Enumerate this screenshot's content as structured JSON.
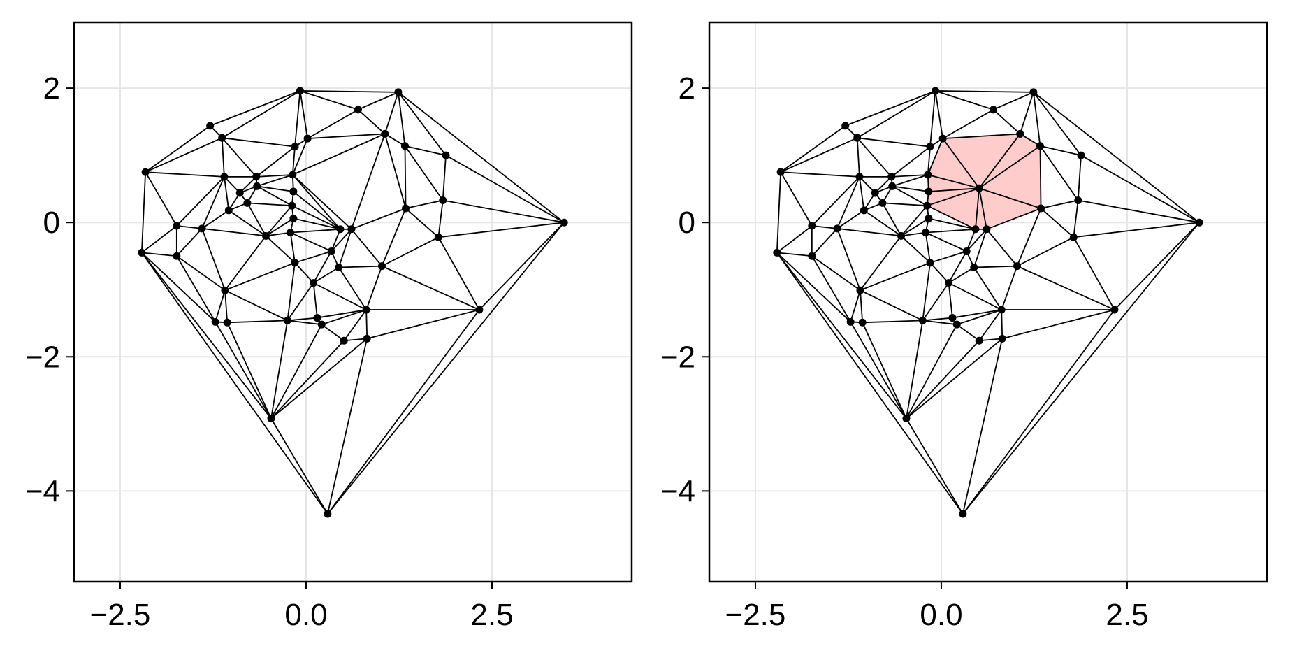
{
  "chart_data": [
    {
      "type": "scatter",
      "subtype": "delaunay-triangulation",
      "title": "",
      "xlabel": "",
      "ylabel": "",
      "xlim": [
        -3.12,
        4.38
      ],
      "ylim": [
        -5.35,
        2.98
      ],
      "xticks": [
        -2.5,
        0.0,
        2.5
      ],
      "xtick_labels": [
        "−2.5",
        "0.0",
        "2.5"
      ],
      "yticks": [
        2,
        0,
        -2,
        -4
      ],
      "ytick_labels": [
        "2",
        "0",
        "−2",
        "−4"
      ],
      "grid": true,
      "points": [
        [
          -0.08,
          1.96
        ],
        [
          1.24,
          1.94
        ],
        [
          0.7,
          1.68
        ],
        [
          -1.29,
          1.44
        ],
        [
          -1.13,
          1.26
        ],
        [
          0.02,
          1.25
        ],
        [
          1.06,
          1.32
        ],
        [
          -0.15,
          1.13
        ],
        [
          1.33,
          1.14
        ],
        [
          1.88,
          1.0
        ],
        [
          -2.16,
          0.75
        ],
        [
          -1.1,
          0.68
        ],
        [
          -0.67,
          0.68
        ],
        [
          -0.18,
          0.71
        ],
        [
          -0.66,
          0.54
        ],
        [
          -0.89,
          0.44
        ],
        [
          -0.17,
          0.46
        ],
        [
          -0.79,
          0.29
        ],
        [
          -1.04,
          0.18
        ],
        [
          -0.19,
          0.25
        ],
        [
          1.84,
          0.33
        ],
        [
          1.34,
          0.21
        ],
        [
          -0.17,
          0.06
        ],
        [
          3.47,
          0.0
        ],
        [
          -1.74,
          -0.05
        ],
        [
          -1.4,
          -0.09
        ],
        [
          0.61,
          -0.1
        ],
        [
          0.46,
          -0.1
        ],
        [
          -0.21,
          -0.15
        ],
        [
          -0.54,
          -0.2
        ],
        [
          1.78,
          -0.22
        ],
        [
          -2.21,
          -0.45
        ],
        [
          -1.74,
          -0.5
        ],
        [
          0.34,
          -0.43
        ],
        [
          -0.15,
          -0.6
        ],
        [
          0.44,
          -0.67
        ],
        [
          1.02,
          -0.65
        ],
        [
          0.1,
          -0.9
        ],
        [
          -1.09,
          -1.01
        ],
        [
          0.81,
          -1.3
        ],
        [
          2.33,
          -1.3
        ],
        [
          -0.25,
          -1.46
        ],
        [
          0.15,
          -1.42
        ],
        [
          -1.22,
          -1.48
        ],
        [
          -1.06,
          -1.49
        ],
        [
          0.21,
          -1.52
        ],
        [
          0.51,
          -1.76
        ],
        [
          0.82,
          -1.73
        ],
        [
          -0.47,
          -2.92
        ],
        [
          0.29,
          -4.34
        ]
      ],
      "highlight": null
    },
    {
      "type": "scatter",
      "subtype": "delaunay-triangulation",
      "title": "",
      "xlabel": "",
      "ylabel": "",
      "xlim": [
        -3.12,
        4.38
      ],
      "ylim": [
        -5.35,
        2.98
      ],
      "xticks": [
        -2.5,
        0.0,
        2.5
      ],
      "xtick_labels": [
        "−2.5",
        "0.0",
        "2.5"
      ],
      "yticks": [
        2,
        0,
        -2,
        -4
      ],
      "ytick_labels": [
        "2",
        "0",
        "−2",
        "−4"
      ],
      "grid": true,
      "added_point": [
        0.51,
        0.51
      ],
      "highlight": {
        "description": "star polygon of inserted point",
        "fill": "#ffcccc",
        "polygon": [
          [
            0.02,
            1.26
          ],
          [
            1.05,
            1.31
          ],
          [
            1.33,
            1.14
          ],
          [
            1.34,
            0.21
          ],
          [
            0.61,
            -0.08
          ],
          [
            0.46,
            -0.08
          ],
          [
            -0.19,
            0.25
          ],
          [
            -0.17,
            0.46
          ],
          [
            -0.18,
            0.71
          ]
        ]
      }
    }
  ],
  "colors": {
    "edge": "#000000",
    "point": "#000000",
    "grid": "#e6e6e6",
    "highlight_fill": "#ffcccc",
    "highlight_edge": "#3a0000"
  }
}
